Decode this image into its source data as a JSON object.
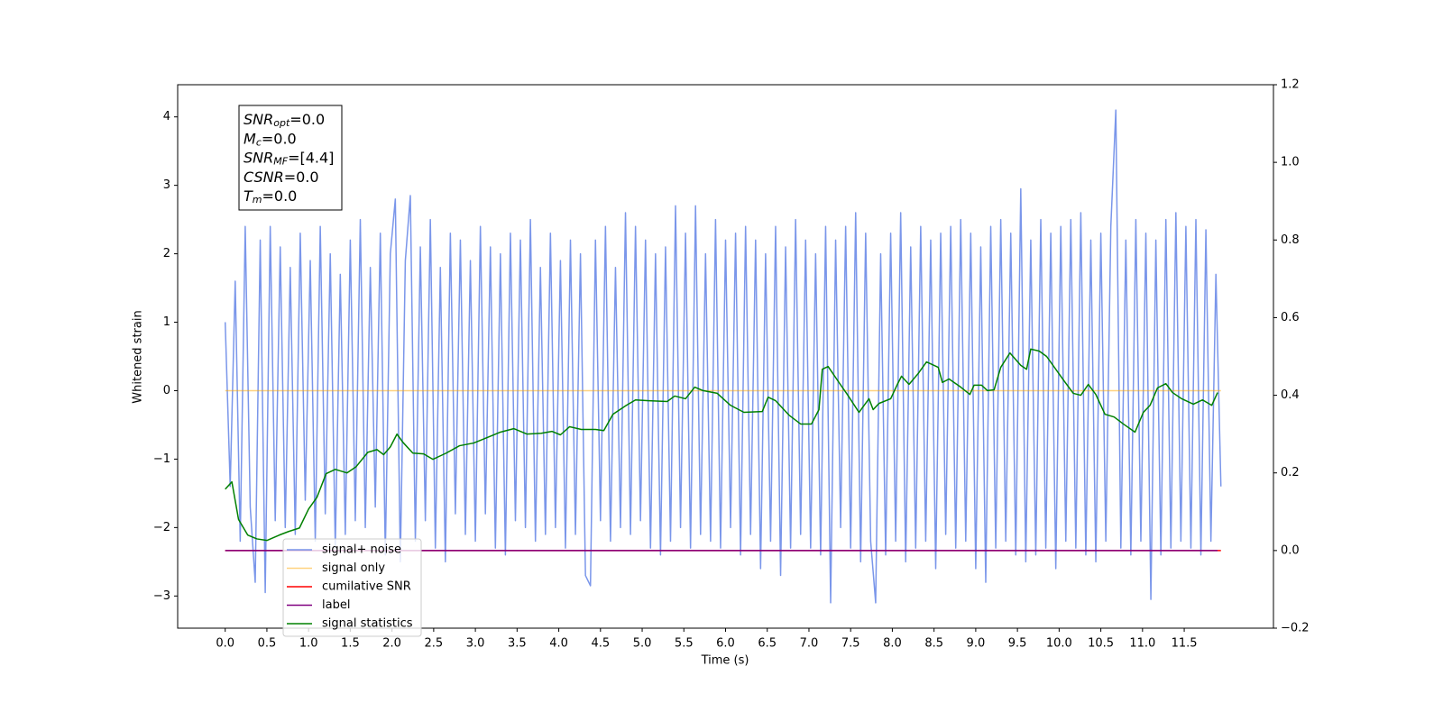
{
  "chart_data": {
    "type": "line",
    "xlabel": "Time (s)",
    "ylabel": "Whitened strain",
    "xlim": [
      -0.57,
      12.57
    ],
    "ylim": [
      -3.47,
      4.47
    ],
    "y2lim": [
      -0.2,
      1.2
    ],
    "xticks": [
      {
        "value": 0,
        "label": "0.0"
      },
      0.5,
      {
        "value": 1,
        "label": "1.0"
      },
      1.5,
      {
        "value": 2,
        "label": "2.0"
      },
      2.5,
      {
        "value": 3,
        "label": "3.0"
      },
      3.5,
      {
        "value": 4,
        "label": "4.0"
      },
      4.5,
      {
        "value": 5,
        "label": "5.0"
      },
      5.5,
      {
        "value": 6,
        "label": "6.0"
      },
      6.5,
      {
        "value": 7,
        "label": "7.0"
      },
      7.5,
      {
        "value": 8,
        "label": "8.0"
      },
      8.5,
      {
        "value": 9,
        "label": "9.0"
      },
      9.5,
      {
        "value": 10,
        "label": "10.0"
      },
      10.5,
      {
        "value": 11,
        "label": "11.0"
      },
      11.5
    ],
    "yticks": [
      {
        "value": -3,
        "label": "−3"
      },
      {
        "value": -2,
        "label": "−2"
      },
      {
        "value": -1,
        "label": "−1"
      },
      0,
      1,
      2,
      3,
      4
    ],
    "y2ticks": [
      {
        "value": -0.2,
        "label": "−0.2"
      },
      {
        "value": 0,
        "label": "0.0"
      },
      0.2,
      0.4,
      0.6,
      0.8,
      {
        "value": 1,
        "label": "1.0"
      },
      1.2
    ],
    "legend": "lower left",
    "stats_box": [
      {
        "name": "SNR",
        "sub": "opt",
        "text": "=0.0"
      },
      {
        "name": "M",
        "sub": "c",
        "text": "=0.0"
      },
      {
        "name": "SNR",
        "sub": "MF",
        "text": "=[4.4]"
      },
      {
        "name": "CSNR",
        "text": "=0.0"
      },
      {
        "name": "T",
        "sub": "m",
        "text": "=0.0"
      }
    ],
    "series": [
      {
        "name": "signal+ noise",
        "color": "royalblue",
        "alpha": 0.7,
        "axis": "y",
        "x": [
          0,
          0.06,
          0.12,
          0.18,
          0.24,
          0.3,
          0.36,
          0.42,
          0.48,
          0.54,
          0.6,
          0.66,
          0.72,
          0.78,
          0.84,
          0.9,
          0.96,
          1.02,
          1.08,
          1.14,
          1.2,
          1.26,
          1.32,
          1.38,
          1.44,
          1.5,
          1.56,
          1.62,
          1.68,
          1.74,
          1.8,
          1.86,
          1.92,
          1.98,
          2.04,
          2.1,
          2.16,
          2.22,
          2.28,
          2.34,
          2.4,
          2.46,
          2.52,
          2.58,
          2.64,
          2.7,
          2.76,
          2.82,
          2.88,
          2.94,
          3,
          3.06,
          3.12,
          3.18,
          3.24,
          3.3,
          3.36,
          3.42,
          3.48,
          3.54,
          3.6,
          3.66,
          3.72,
          3.78,
          3.84,
          3.9,
          3.96,
          4.02,
          4.08,
          4.14,
          4.2,
          4.26,
          4.32,
          4.38,
          4.44,
          4.5,
          4.56,
          4.62,
          4.68,
          4.74,
          4.8,
          4.86,
          4.92,
          4.98,
          5.04,
          5.1,
          5.16,
          5.22,
          5.28,
          5.34,
          5.4,
          5.46,
          5.52,
          5.58,
          5.64,
          5.7,
          5.76,
          5.82,
          5.88,
          5.94,
          6,
          6.06,
          6.12,
          6.18,
          6.24,
          6.3,
          6.36,
          6.42,
          6.48,
          6.54,
          6.6,
          6.66,
          6.72,
          6.78,
          6.84,
          6.9,
          6.96,
          7.02,
          7.08,
          7.14,
          7.2,
          7.26,
          7.32,
          7.38,
          7.44,
          7.5,
          7.56,
          7.62,
          7.68,
          7.74,
          7.8,
          7.86,
          7.92,
          7.98,
          8.04,
          8.1,
          8.16,
          8.22,
          8.28,
          8.34,
          8.4,
          8.46,
          8.52,
          8.58,
          8.64,
          8.7,
          8.76,
          8.82,
          8.88,
          8.94,
          9,
          9.06,
          9.12,
          9.18,
          9.24,
          9.3,
          9.36,
          9.42,
          9.48,
          9.54,
          9.6,
          9.66,
          9.72,
          9.78,
          9.84,
          9.9,
          9.96,
          10.02,
          10.08,
          10.14,
          10.2,
          10.26,
          10.32,
          10.38,
          10.44,
          10.5,
          10.56,
          10.62,
          10.68,
          10.74,
          10.8,
          10.86,
          10.92,
          10.98,
          11.04,
          11.1,
          11.16,
          11.22,
          11.28,
          11.34,
          11.4,
          11.46,
          11.52,
          11.58,
          11.64,
          11.7,
          11.76,
          11.82,
          11.88,
          11.94
        ],
        "values": [
          1.0,
          -1.4,
          1.6,
          -2.2,
          2.4,
          -1.7,
          -2.8,
          2.2,
          -2.95,
          2.4,
          -1.9,
          2.1,
          -2.0,
          1.8,
          -2.1,
          2.3,
          -1.6,
          1.9,
          -2.2,
          2.4,
          -1.8,
          2.0,
          -2.3,
          1.7,
          -2.1,
          2.2,
          -1.9,
          2.5,
          -2.0,
          1.8,
          -1.7,
          2.3,
          -2.4,
          2.0,
          2.8,
          -2.5,
          1.9,
          2.85,
          -2.2,
          2.1,
          -1.9,
          2.5,
          -2.3,
          1.8,
          -2.5,
          2.3,
          -1.8,
          2.2,
          -2.1,
          1.9,
          -2.2,
          2.4,
          -1.8,
          2.1,
          -2.3,
          2.0,
          -2.4,
          2.3,
          -1.9,
          2.2,
          -2.0,
          2.5,
          -2.2,
          1.8,
          -2.1,
          2.3,
          -2.0,
          1.9,
          -2.3,
          2.2,
          -2.1,
          2.0,
          -2.7,
          -2.85,
          2.2,
          -1.9,
          2.4,
          -2.2,
          1.8,
          -2.0,
          2.6,
          -2.1,
          2.4,
          -1.9,
          2.2,
          -2.3,
          2.0,
          -2.4,
          2.1,
          -2.2,
          2.7,
          -2.0,
          2.3,
          -2.3,
          2.7,
          -2.1,
          2.0,
          -2.2,
          2.5,
          -2.3,
          2.2,
          -2.0,
          2.3,
          -2.4,
          2.4,
          -2.1,
          2.2,
          -2.6,
          2.0,
          -2.2,
          2.4,
          -2.7,
          2.1,
          -2.3,
          2.5,
          -2.1,
          2.2,
          -2.3,
          2.0,
          -2.4,
          2.4,
          -3.1,
          2.2,
          -2.0,
          2.4,
          -2.3,
          2.6,
          -2.5,
          2.3,
          -2.2,
          -3.1,
          2.0,
          -2.4,
          2.3,
          -2.2,
          2.6,
          -2.5,
          2.1,
          -2.3,
          2.4,
          -2.2,
          2.2,
          -2.6,
          2.3,
          -2.1,
          2.4,
          -2.3,
          2.5,
          -2.2,
          2.3,
          -2.6,
          2.1,
          -2.8,
          2.4,
          -2.3,
          2.5,
          -2.2,
          2.3,
          -2.4,
          2.95,
          -2.5,
          2.2,
          -2.4,
          2.5,
          -2.3,
          2.3,
          -2.6,
          2.4,
          -2.2,
          2.5,
          -2.3,
          2.6,
          -2.4,
          2.2,
          -2.5,
          2.3,
          -2.2,
          2.4,
          4.1,
          -2.3,
          2.2,
          -2.4,
          2.5,
          -2.2,
          2.3,
          -3.05,
          2.2,
          -2.4,
          2.5,
          -2.3,
          2.6,
          -2.2,
          2.4,
          -2.3,
          2.5,
          -2.4,
          2.35,
          -2.2,
          1.7,
          -1.4
        ]
      },
      {
        "name": "signal only",
        "color": "orange",
        "alpha": 0.5,
        "axis": "y",
        "x": [
          0,
          11.94
        ],
        "values": [
          0,
          0
        ]
      },
      {
        "name": "cumilative SNR",
        "color": "red",
        "alpha": 1,
        "axis": "y2",
        "x": [
          0,
          11.94
        ],
        "values": [
          0,
          0
        ]
      },
      {
        "name": "label",
        "color": "purple",
        "alpha": 1,
        "axis": "y2",
        "x": [
          0,
          11.9
        ],
        "values": [
          0,
          0
        ]
      },
      {
        "name": "signal statistics",
        "color": "green",
        "alpha": 1,
        "axis": "y2",
        "x": [
          0,
          0.08,
          0.16,
          0.27,
          0.38,
          0.5,
          0.65,
          0.76,
          0.89,
          1.0,
          1.1,
          1.21,
          1.32,
          1.46,
          1.57,
          1.71,
          1.82,
          1.9,
          1.98,
          2.06,
          2.13,
          2.25,
          2.38,
          2.49,
          2.65,
          2.81,
          2.98,
          3.14,
          3.3,
          3.46,
          3.62,
          3.79,
          3.92,
          4.02,
          4.13,
          4.27,
          4.44,
          4.54,
          4.65,
          4.81,
          4.92,
          5.08,
          5.3,
          5.39,
          5.52,
          5.63,
          5.73,
          5.9,
          6.06,
          6.22,
          6.44,
          6.51,
          6.6,
          6.76,
          6.9,
          7.03,
          7.12,
          7.16,
          7.23,
          7.36,
          7.46,
          7.6,
          7.72,
          7.77,
          7.84,
          7.98,
          8.06,
          8.11,
          8.2,
          8.31,
          8.41,
          8.55,
          8.6,
          8.68,
          8.82,
          8.93,
          8.98,
          9.07,
          9.14,
          9.22,
          9.3,
          9.41,
          9.54,
          9.61,
          9.66,
          9.76,
          9.85,
          10.06,
          10.17,
          10.26,
          10.35,
          10.44,
          10.55,
          10.66,
          10.77,
          10.91,
          11.01,
          11.09,
          11.18,
          11.28,
          11.36,
          11.47,
          11.61,
          11.72,
          11.83,
          11.9
        ],
        "values": [
          0.158,
          0.177,
          0.08,
          0.04,
          0.03,
          0.026,
          0.04,
          0.049,
          0.058,
          0.107,
          0.137,
          0.198,
          0.209,
          0.2,
          0.216,
          0.253,
          0.26,
          0.247,
          0.267,
          0.3,
          0.279,
          0.251,
          0.249,
          0.235,
          0.251,
          0.27,
          0.277,
          0.291,
          0.305,
          0.314,
          0.3,
          0.302,
          0.307,
          0.298,
          0.319,
          0.312,
          0.312,
          0.309,
          0.351,
          0.374,
          0.388,
          0.386,
          0.384,
          0.398,
          0.391,
          0.421,
          0.412,
          0.405,
          0.374,
          0.356,
          0.358,
          0.395,
          0.386,
          0.349,
          0.326,
          0.326,
          0.363,
          0.467,
          0.474,
          0.433,
          0.402,
          0.356,
          0.391,
          0.363,
          0.379,
          0.391,
          0.428,
          0.449,
          0.428,
          0.456,
          0.486,
          0.472,
          0.433,
          0.442,
          0.421,
          0.402,
          0.426,
          0.426,
          0.412,
          0.414,
          0.472,
          0.509,
          0.477,
          0.467,
          0.519,
          0.514,
          0.5,
          0.437,
          0.405,
          0.4,
          0.428,
          0.402,
          0.351,
          0.344,
          0.326,
          0.305,
          0.356,
          0.374,
          0.419,
          0.43,
          0.407,
          0.391,
          0.377,
          0.388,
          0.374,
          0.407
        ]
      }
    ]
  }
}
